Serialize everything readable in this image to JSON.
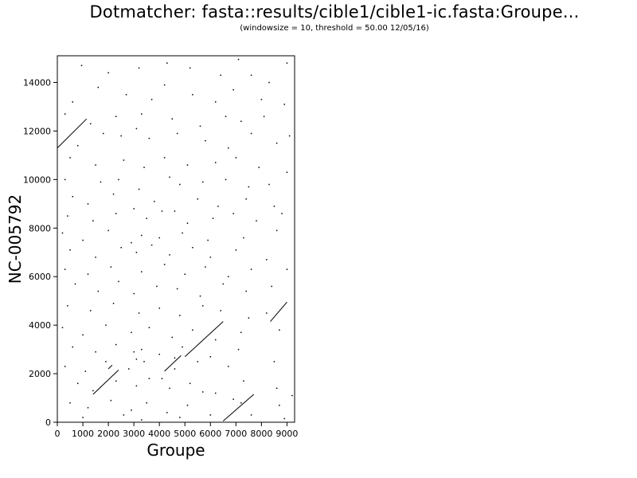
{
  "chart_data": {
    "type": "scatter",
    "title": "Dotmatcher: fasta::results/cible1/cible1-ic.fasta:Groupe...",
    "subtitle": "(windowsize = 10, threshold = 50.00  12/05/16)",
    "xlabel": "Groupe",
    "ylabel": "NC-005792",
    "xlim": [
      0,
      9300
    ],
    "ylim": [
      0,
      15100
    ],
    "xticks": [
      0,
      1000,
      2000,
      3000,
      4000,
      5000,
      6000,
      7000,
      8000,
      9000
    ],
    "yticks": [
      0,
      2000,
      4000,
      6000,
      8000,
      10000,
      12000,
      14000
    ],
    "grid": false,
    "legend": "none",
    "colors": {
      "points": "#000000",
      "axes": "#000000",
      "background": "#ffffff"
    },
    "diagonal_segments": [
      {
        "x": [
          0,
          1150
        ],
        "y": [
          11300,
          12500
        ]
      },
      {
        "x": [
          1400,
          2400
        ],
        "y": [
          1150,
          2150
        ]
      },
      {
        "x": [
          2000,
          2150
        ],
        "y": [
          2200,
          2350
        ]
      },
      {
        "x": [
          4200,
          4850
        ],
        "y": [
          2100,
          2750
        ]
      },
      {
        "x": [
          5000,
          6500
        ],
        "y": [
          2700,
          4150
        ]
      },
      {
        "x": [
          6500,
          7700
        ],
        "y": [
          50,
          1150
        ]
      },
      {
        "x": [
          8350,
          9000
        ],
        "y": [
          4150,
          4950
        ]
      }
    ],
    "points": [
      [
        950,
        14700
      ],
      [
        2000,
        14400
      ],
      [
        3200,
        14600
      ],
      [
        4300,
        14800
      ],
      [
        5200,
        14600
      ],
      [
        6400,
        14300
      ],
      [
        7100,
        14950
      ],
      [
        7600,
        14300
      ],
      [
        8300,
        14000
      ],
      [
        9000,
        14800
      ],
      [
        600,
        13200
      ],
      [
        1600,
        13800
      ],
      [
        2700,
        13500
      ],
      [
        3700,
        13300
      ],
      [
        4200,
        13900
      ],
      [
        5300,
        13500
      ],
      [
        6200,
        13200
      ],
      [
        6900,
        13700
      ],
      [
        8000,
        13300
      ],
      [
        8900,
        13100
      ],
      [
        300,
        12700
      ],
      [
        1300,
        12300
      ],
      [
        2300,
        12600
      ],
      [
        3300,
        12700
      ],
      [
        4500,
        12500
      ],
      [
        5600,
        12200
      ],
      [
        6600,
        12600
      ],
      [
        7200,
        12400
      ],
      [
        8100,
        12600
      ],
      [
        9100,
        11800
      ],
      [
        800,
        11400
      ],
      [
        1800,
        11900
      ],
      [
        2500,
        11800
      ],
      [
        3100,
        12100
      ],
      [
        3600,
        11700
      ],
      [
        4700,
        11900
      ],
      [
        5800,
        11600
      ],
      [
        6700,
        11300
      ],
      [
        7600,
        11900
      ],
      [
        8600,
        11500
      ],
      [
        500,
        10900
      ],
      [
        1500,
        10600
      ],
      [
        2600,
        10800
      ],
      [
        3400,
        10500
      ],
      [
        4200,
        10900
      ],
      [
        5100,
        10600
      ],
      [
        6200,
        10700
      ],
      [
        7000,
        10900
      ],
      [
        7900,
        10500
      ],
      [
        9000,
        10300
      ],
      [
        300,
        10000
      ],
      [
        1700,
        9900
      ],
      [
        2400,
        10000
      ],
      [
        3200,
        9600
      ],
      [
        4400,
        10100
      ],
      [
        4800,
        9800
      ],
      [
        5700,
        9900
      ],
      [
        6600,
        10000
      ],
      [
        7500,
        9700
      ],
      [
        8300,
        9800
      ],
      [
        600,
        9300
      ],
      [
        1200,
        9000
      ],
      [
        2200,
        9400
      ],
      [
        3000,
        8800
      ],
      [
        3800,
        9100
      ],
      [
        4600,
        8700
      ],
      [
        5500,
        9200
      ],
      [
        6300,
        8900
      ],
      [
        7400,
        9200
      ],
      [
        8500,
        8900
      ],
      [
        400,
        8500
      ],
      [
        1400,
        8300
      ],
      [
        2300,
        8600
      ],
      [
        3500,
        8400
      ],
      [
        4100,
        8700
      ],
      [
        5100,
        8200
      ],
      [
        6100,
        8400
      ],
      [
        6900,
        8600
      ],
      [
        7800,
        8300
      ],
      [
        8800,
        8600
      ],
      [
        200,
        7800
      ],
      [
        1000,
        7500
      ],
      [
        2000,
        7900
      ],
      [
        2900,
        7400
      ],
      [
        3300,
        7700
      ],
      [
        4000,
        7600
      ],
      [
        4900,
        7800
      ],
      [
        5900,
        7500
      ],
      [
        7300,
        7600
      ],
      [
        8600,
        7900
      ],
      [
        500,
        7100
      ],
      [
        1500,
        6800
      ],
      [
        2500,
        7200
      ],
      [
        3100,
        7000
      ],
      [
        3700,
        7300
      ],
      [
        4400,
        6900
      ],
      [
        5300,
        7200
      ],
      [
        6000,
        6800
      ],
      [
        7000,
        7100
      ],
      [
        8200,
        6700
      ],
      [
        300,
        6300
      ],
      [
        1200,
        6100
      ],
      [
        2100,
        6400
      ],
      [
        3300,
        6200
      ],
      [
        4200,
        6500
      ],
      [
        5000,
        6100
      ],
      [
        5800,
        6400
      ],
      [
        6700,
        6000
      ],
      [
        7600,
        6300
      ],
      [
        9000,
        6300
      ],
      [
        700,
        5700
      ],
      [
        1600,
        5400
      ],
      [
        2400,
        5800
      ],
      [
        3000,
        5300
      ],
      [
        3900,
        5600
      ],
      [
        4700,
        5500
      ],
      [
        5600,
        5200
      ],
      [
        6500,
        5700
      ],
      [
        7400,
        5400
      ],
      [
        8400,
        5600
      ],
      [
        400,
        4800
      ],
      [
        1300,
        4600
      ],
      [
        2200,
        4900
      ],
      [
        3200,
        4500
      ],
      [
        4000,
        4700
      ],
      [
        4800,
        4400
      ],
      [
        5700,
        4800
      ],
      [
        6400,
        4600
      ],
      [
        7500,
        4300
      ],
      [
        8200,
        4500
      ],
      [
        200,
        3900
      ],
      [
        1000,
        3600
      ],
      [
        1900,
        4000
      ],
      [
        2900,
        3700
      ],
      [
        3600,
        3900
      ],
      [
        4500,
        3500
      ],
      [
        5300,
        3800
      ],
      [
        6200,
        3400
      ],
      [
        7200,
        3700
      ],
      [
        8700,
        3800
      ],
      [
        600,
        3100
      ],
      [
        1500,
        2900
      ],
      [
        2300,
        3200
      ],
      [
        3000,
        2900
      ],
      [
        3100,
        2600
      ],
      [
        3300,
        3000
      ],
      [
        4000,
        2800
      ],
      [
        4900,
        3100
      ],
      [
        6000,
        2700
      ],
      [
        7100,
        3000
      ],
      [
        300,
        2300
      ],
      [
        1100,
        2100
      ],
      [
        1900,
        2500
      ],
      [
        2800,
        2200
      ],
      [
        3400,
        2500
      ],
      [
        4100,
        1800
      ],
      [
        4600,
        2200
      ],
      [
        5500,
        2500
      ],
      [
        6700,
        2300
      ],
      [
        8500,
        2500
      ],
      [
        800,
        1600
      ],
      [
        1400,
        1300
      ],
      [
        2300,
        1700
      ],
      [
        3100,
        1500
      ],
      [
        3600,
        1800
      ],
      [
        4400,
        1400
      ],
      [
        5200,
        1600
      ],
      [
        6200,
        1200
      ],
      [
        7300,
        1700
      ],
      [
        8600,
        1400
      ],
      [
        500,
        800
      ],
      [
        1200,
        600
      ],
      [
        2100,
        900
      ],
      [
        2900,
        500
      ],
      [
        3500,
        800
      ],
      [
        4300,
        400
      ],
      [
        5100,
        700
      ],
      [
        6000,
        300
      ],
      [
        7200,
        800
      ],
      [
        8700,
        700
      ],
      [
        1000,
        200
      ],
      [
        2600,
        300
      ],
      [
        3300,
        100
      ],
      [
        4800,
        200
      ],
      [
        7600,
        300
      ],
      [
        8900,
        150
      ],
      [
        9200,
        1100
      ],
      [
        6900,
        950
      ],
      [
        5700,
        1250
      ],
      [
        4600,
        2650
      ]
    ]
  }
}
